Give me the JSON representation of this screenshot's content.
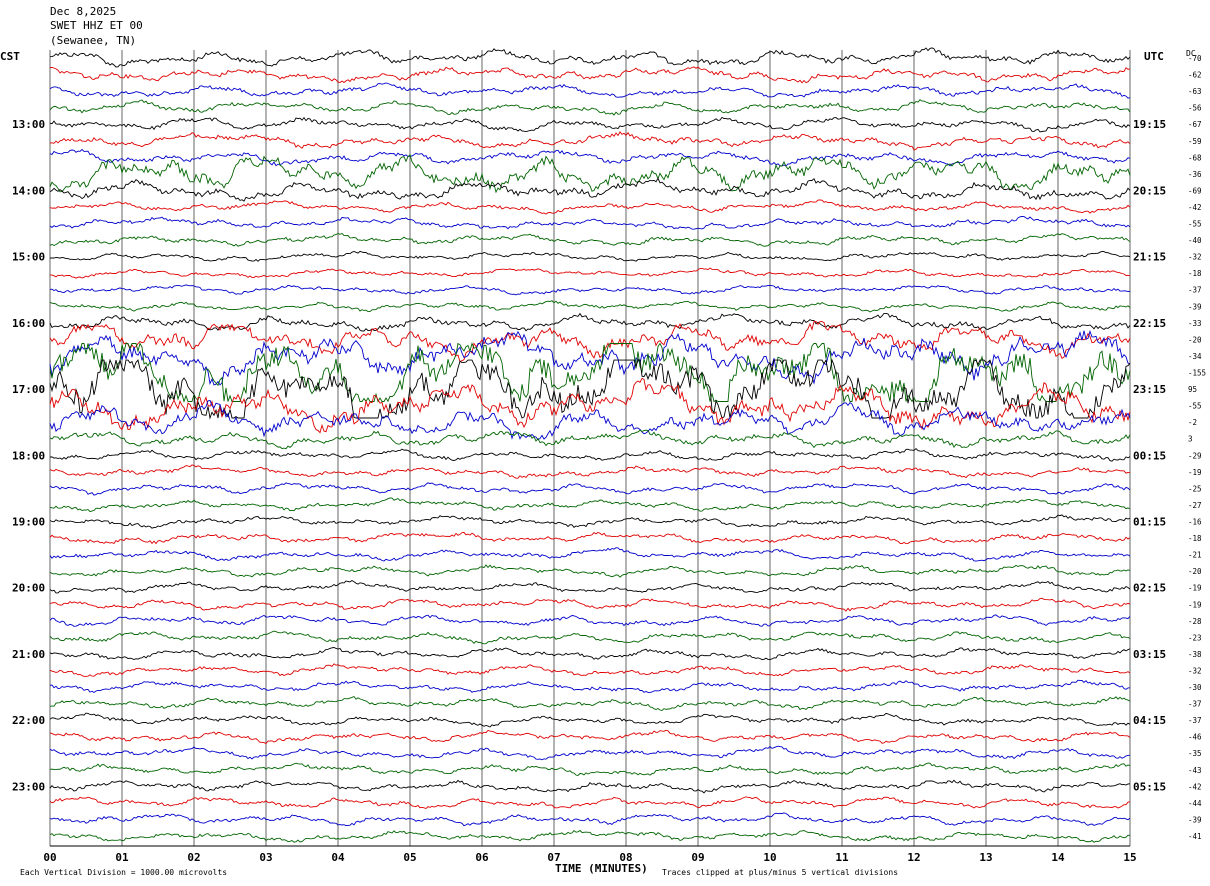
{
  "header": {
    "date": "Dec 8,2025",
    "station": "SWET HHZ ET 00",
    "location": "(Sewanee, TN)"
  },
  "left_tz": "CST",
  "right_tz": "UTC",
  "dc_label": "DC",
  "footer": {
    "xlabel": "TIME (MINUTES)",
    "scale_note": "Each Vertical Division = 1000.00 microvolts",
    "clip_note": "Traces clipped at plus/minus 5 vertical divisions"
  },
  "colors": {
    "trace_cycle": [
      "#000000",
      "#e00000",
      "#0000cc",
      "#006400"
    ],
    "grid": "#000000"
  },
  "chart_data": {
    "type": "line",
    "title": "",
    "xlabel": "TIME (MINUTES)",
    "xlim": [
      0,
      15
    ],
    "x_ticks": [
      "00",
      "01",
      "02",
      "03",
      "04",
      "05",
      "06",
      "07",
      "08",
      "09",
      "10",
      "11",
      "12",
      "13",
      "14",
      "15"
    ],
    "rows": 48,
    "left_hour_labels": [
      "13:00",
      "14:00",
      "15:00",
      "16:00",
      "17:00",
      "18:00",
      "19:00",
      "20:00",
      "21:00",
      "22:00",
      "23:00"
    ],
    "right_hour_labels": [
      "19:15",
      "20:15",
      "21:15",
      "22:15",
      "23:15",
      "00:15",
      "01:15",
      "02:15",
      "03:15",
      "04:15",
      "05:15"
    ],
    "dc_offsets": [
      "-70",
      "-62",
      "-63",
      "-56",
      "-67",
      "-59",
      "-68",
      "-36",
      "-69",
      "-42",
      "-55",
      "-40",
      "-32",
      "-18",
      "-37",
      "-39",
      "-33",
      "-20",
      "-34",
      "-155",
      "95",
      "-55",
      "-2",
      "3",
      "-29",
      "-19",
      "-25",
      "-27",
      "-16",
      "-18",
      "-21",
      "-20",
      "-19",
      "-19",
      "-28",
      "-23",
      "-38",
      "-32",
      "-30",
      "-37",
      "-37",
      "-46",
      "-35",
      "-43",
      "-42",
      "-44",
      "-39",
      "-41"
    ],
    "row_amplitude_divisions": [
      0.45,
      0.4,
      0.35,
      0.35,
      0.35,
      0.4,
      0.4,
      1.0,
      0.55,
      0.3,
      0.3,
      0.3,
      0.25,
      0.25,
      0.25,
      0.25,
      0.45,
      0.9,
      1.3,
      2.4,
      2.4,
      1.3,
      0.9,
      0.45,
      0.3,
      0.3,
      0.3,
      0.3,
      0.3,
      0.3,
      0.3,
      0.3,
      0.3,
      0.3,
      0.3,
      0.3,
      0.3,
      0.3,
      0.3,
      0.3,
      0.3,
      0.3,
      0.3,
      0.3,
      0.3,
      0.3,
      0.3,
      0.3
    ],
    "clip_divisions": 5
  }
}
